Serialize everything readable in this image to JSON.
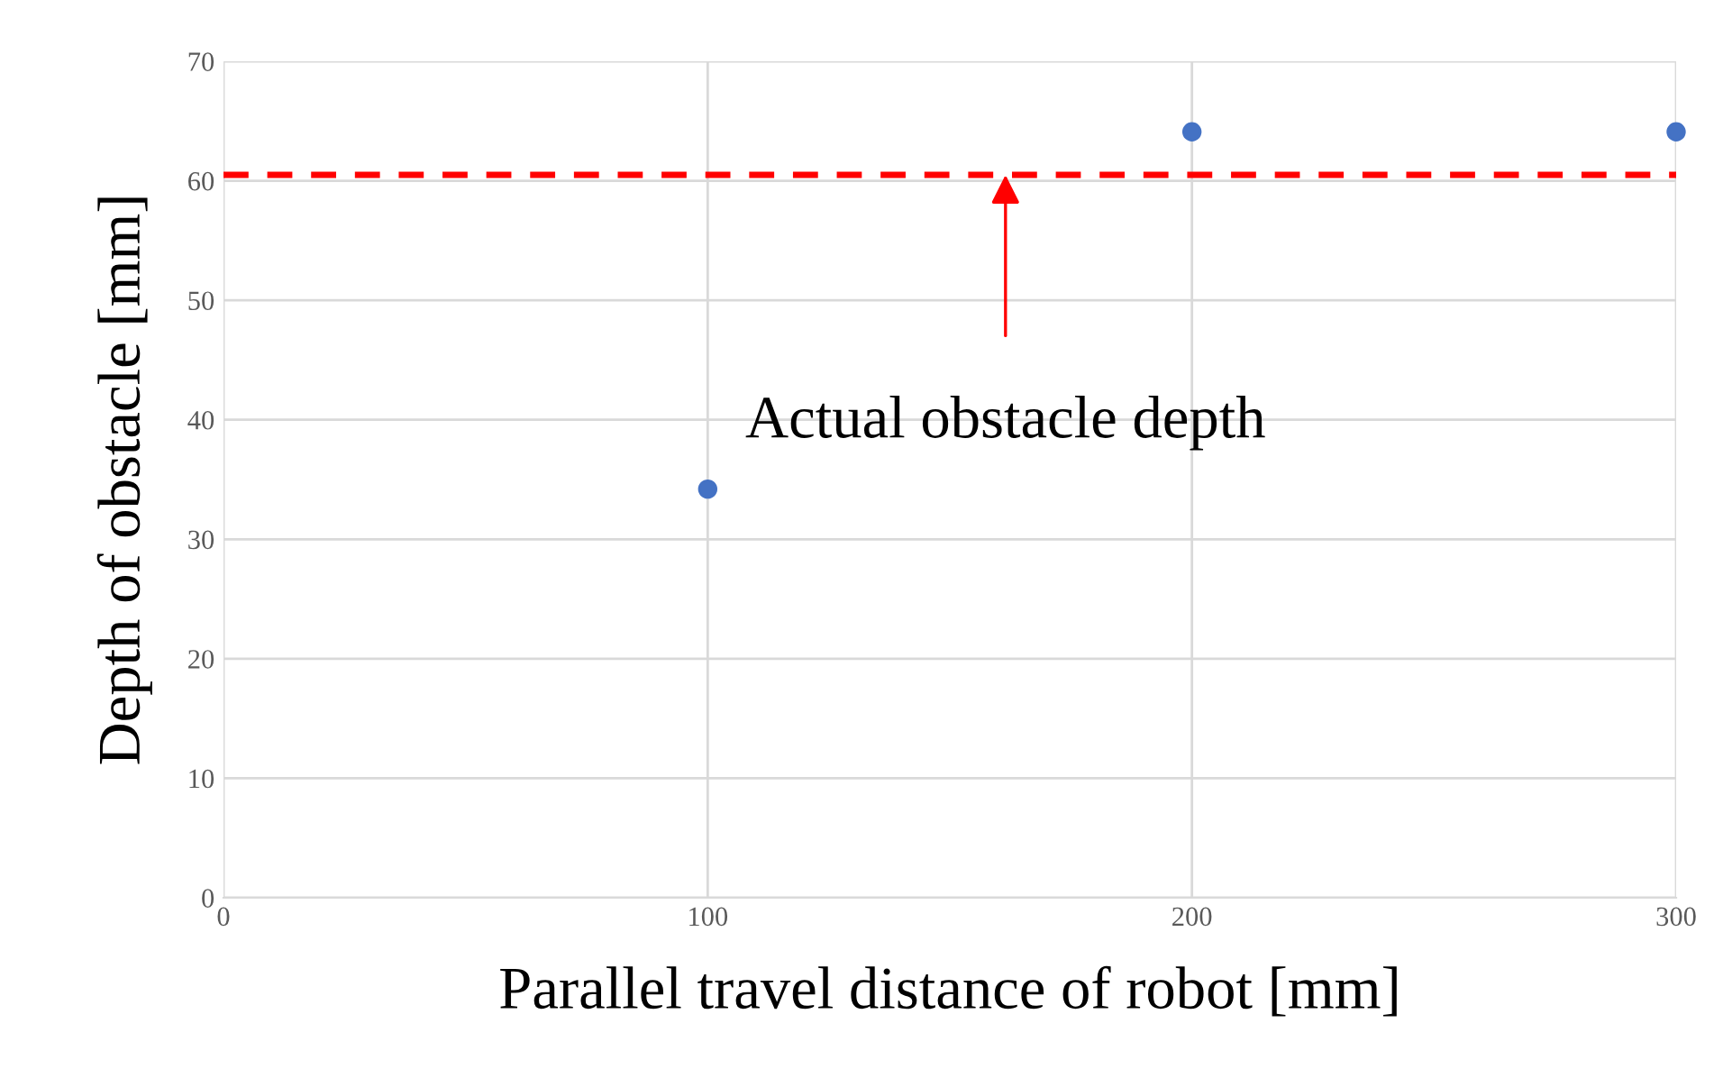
{
  "chart_data": {
    "type": "scatter",
    "xlabel": "Parallel travel distance of robot [mm]",
    "ylabel": "Depth of obstacle [mm]",
    "x": [
      100,
      200,
      300
    ],
    "series": [
      {
        "color": "#4472c4",
        "values": [
          34.2,
          64.1,
          64.1
        ]
      }
    ],
    "xlim": [
      0,
      300
    ],
    "ylim": [
      0,
      70
    ],
    "xticks": [
      0,
      100,
      200,
      300
    ],
    "yticks": [
      0,
      10,
      20,
      30,
      40,
      50,
      60,
      70
    ],
    "grid": true,
    "marker": "circle",
    "ref_lines": [
      {
        "axis": "y",
        "value": 60.5,
        "color": "#ff0000",
        "line_style": "dashed"
      }
    ],
    "annotations": [
      {
        "text": "Actual obstacle depth",
        "x": 161.5,
        "y": 60.5
      }
    ]
  }
}
